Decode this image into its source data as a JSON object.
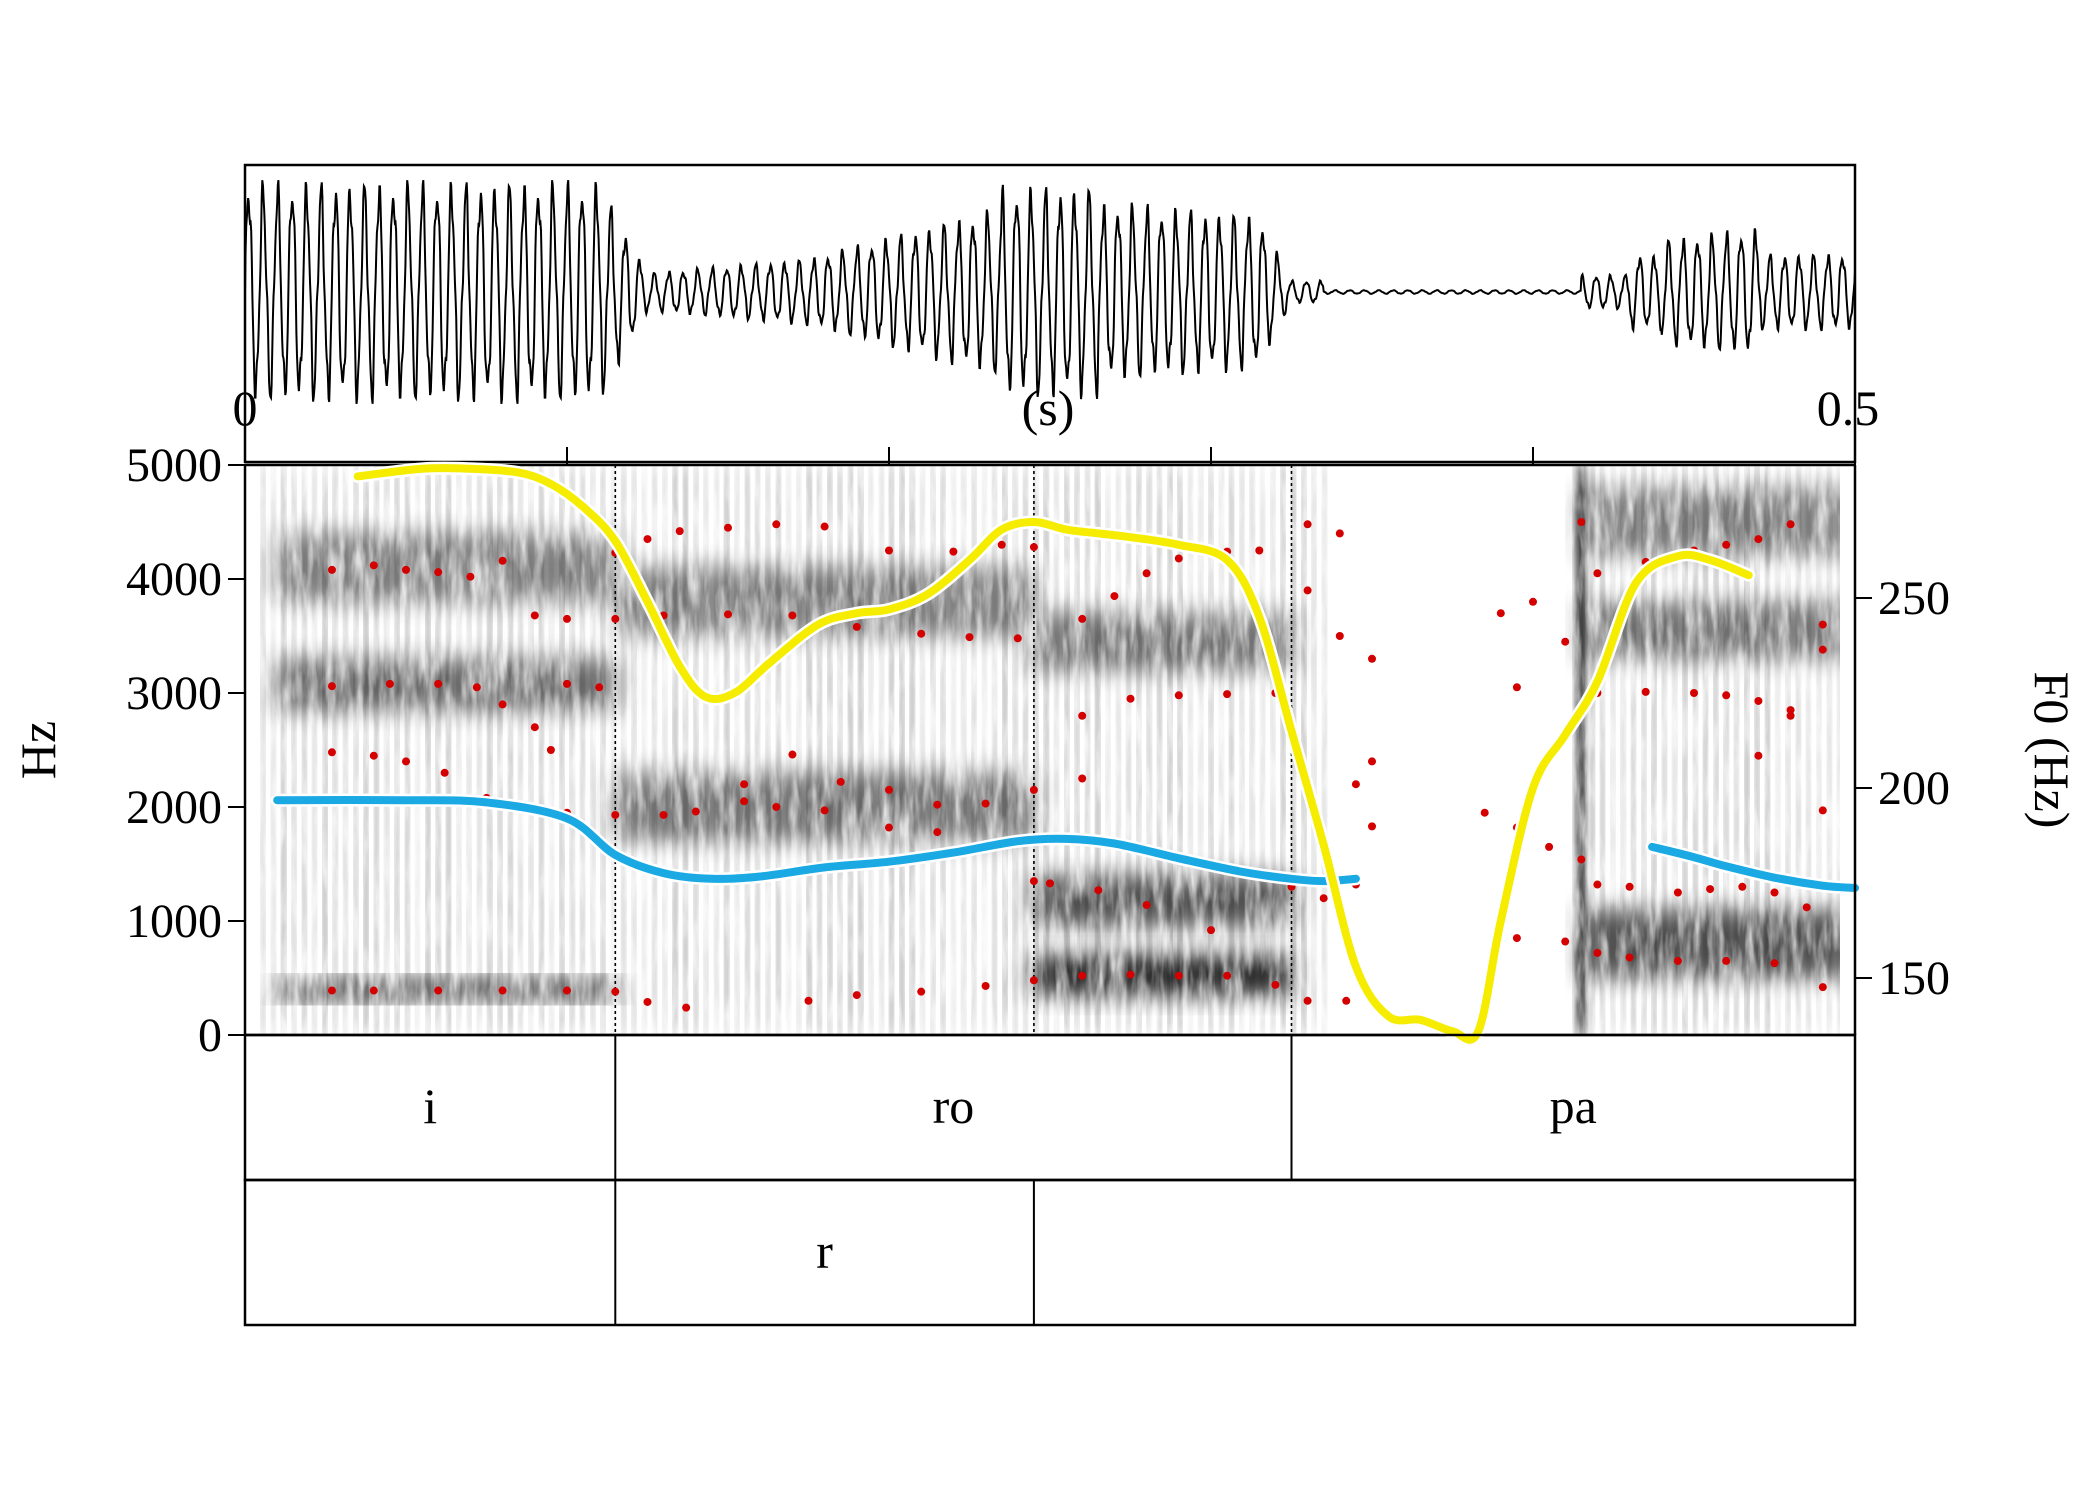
{
  "chart_data": {
    "type": "spectrogram",
    "x_axis": {
      "label": "(s)",
      "range": [
        0,
        0.5
      ],
      "tick_labels": [
        "0",
        "0.5"
      ]
    },
    "y_left": {
      "label": "Hz",
      "range": [
        0,
        5000
      ],
      "ticks": [
        "0",
        "1000",
        "2000",
        "3000",
        "4000",
        "5000"
      ]
    },
    "y_right": {
      "label": "F0 (Hz)",
      "range": [
        135,
        285
      ],
      "ticks": [
        "150",
        "200",
        "250"
      ]
    },
    "boundaries_s": [
      0.115,
      0.245,
      0.325
    ],
    "series": [
      {
        "name": "F0",
        "color": "#f5ec00",
        "axis": "right",
        "points": [
          [
            0.035,
            282
          ],
          [
            0.055,
            284
          ],
          [
            0.07,
            284
          ],
          [
            0.085,
            283
          ],
          [
            0.095,
            280
          ],
          [
            0.105,
            274
          ],
          [
            0.115,
            265
          ],
          [
            0.125,
            249
          ],
          [
            0.135,
            232
          ],
          [
            0.143,
            224
          ],
          [
            0.152,
            225
          ],
          [
            0.163,
            233
          ],
          [
            0.178,
            243
          ],
          [
            0.19,
            246
          ],
          [
            0.2,
            247
          ],
          [
            0.212,
            251
          ],
          [
            0.225,
            260
          ],
          [
            0.235,
            268
          ],
          [
            0.245,
            270
          ],
          [
            0.255,
            268
          ],
          [
            0.265,
            267
          ],
          [
            0.275,
            266
          ],
          [
            0.29,
            264
          ],
          [
            0.305,
            260
          ],
          [
            0.315,
            245
          ],
          [
            0.325,
            215
          ],
          [
            0.335,
            185
          ],
          [
            0.345,
            153
          ],
          [
            0.355,
            140
          ],
          [
            0.365,
            139
          ],
          [
            0.375,
            136
          ],
          [
            0.383,
            136
          ],
          [
            0.39,
            165
          ],
          [
            0.4,
            200
          ],
          [
            0.41,
            214
          ],
          [
            0.42,
            228
          ],
          [
            0.432,
            254
          ],
          [
            0.445,
            261
          ],
          [
            0.455,
            260
          ],
          [
            0.467,
            256
          ]
        ]
      },
      {
        "name": "F2",
        "color": "#1aa9e2",
        "axis": "left",
        "points": [
          [
            0.01,
            2060
          ],
          [
            0.05,
            2060
          ],
          [
            0.075,
            2040
          ],
          [
            0.1,
            1900
          ],
          [
            0.115,
            1580
          ],
          [
            0.13,
            1420
          ],
          [
            0.145,
            1370
          ],
          [
            0.16,
            1390
          ],
          [
            0.18,
            1470
          ],
          [
            0.2,
            1520
          ],
          [
            0.22,
            1600
          ],
          [
            0.24,
            1700
          ],
          [
            0.255,
            1720
          ],
          [
            0.27,
            1680
          ],
          [
            0.29,
            1550
          ],
          [
            0.31,
            1430
          ],
          [
            0.325,
            1370
          ],
          [
            0.335,
            1350
          ],
          [
            0.345,
            1370
          ]
        ]
      },
      {
        "name": "F2",
        "color": "#1aa9e2",
        "axis": "left",
        "points": [
          [
            0.437,
            1650
          ],
          [
            0.45,
            1560
          ],
          [
            0.46,
            1480
          ],
          [
            0.475,
            1380
          ],
          [
            0.49,
            1310
          ],
          [
            0.5,
            1290
          ]
        ]
      }
    ],
    "formant_points": [
      [
        0.027,
        390
      ],
      [
        0.04,
        390
      ],
      [
        0.06,
        390
      ],
      [
        0.08,
        390
      ],
      [
        0.1,
        390
      ],
      [
        0.115,
        380
      ],
      [
        0.125,
        290
      ],
      [
        0.137,
        240
      ],
      [
        0.175,
        300
      ],
      [
        0.19,
        350
      ],
      [
        0.21,
        380
      ],
      [
        0.23,
        430
      ],
      [
        0.245,
        480
      ],
      [
        0.26,
        520
      ],
      [
        0.275,
        530
      ],
      [
        0.29,
        520
      ],
      [
        0.305,
        520
      ],
      [
        0.32,
        440
      ],
      [
        0.33,
        300
      ],
      [
        0.342,
        300
      ],
      [
        0.027,
        2480
      ],
      [
        0.04,
        2450
      ],
      [
        0.05,
        2400
      ],
      [
        0.062,
        2300
      ],
      [
        0.075,
        2080
      ],
      [
        0.09,
        1980
      ],
      [
        0.1,
        1950
      ],
      [
        0.115,
        1930
      ],
      [
        0.13,
        1930
      ],
      [
        0.14,
        1960
      ],
      [
        0.155,
        2200
      ],
      [
        0.17,
        2460
      ],
      [
        0.185,
        2220
      ],
      [
        0.2,
        2150
      ],
      [
        0.215,
        2020
      ],
      [
        0.23,
        2030
      ],
      [
        0.245,
        2150
      ],
      [
        0.26,
        2250
      ],
      [
        0.155,
        2050
      ],
      [
        0.165,
        2000
      ],
      [
        0.18,
        1970
      ],
      [
        0.2,
        1820
      ],
      [
        0.215,
        1780
      ],
      [
        0.23,
        1640
      ],
      [
        0.245,
        1350
      ],
      [
        0.25,
        1330
      ],
      [
        0.265,
        1270
      ],
      [
        0.28,
        1140
      ],
      [
        0.3,
        920
      ],
      [
        0.027,
        3060
      ],
      [
        0.045,
        3080
      ],
      [
        0.06,
        3080
      ],
      [
        0.072,
        3050
      ],
      [
        0.08,
        2900
      ],
      [
        0.09,
        2700
      ],
      [
        0.095,
        2500
      ],
      [
        0.1,
        3080
      ],
      [
        0.11,
        3050
      ],
      [
        0.09,
        3680
      ],
      [
        0.1,
        3650
      ],
      [
        0.115,
        3650
      ],
      [
        0.13,
        3680
      ],
      [
        0.15,
        3690
      ],
      [
        0.17,
        3680
      ],
      [
        0.19,
        3580
      ],
      [
        0.21,
        3520
      ],
      [
        0.225,
        3490
      ],
      [
        0.24,
        3480
      ],
      [
        0.027,
        4080
      ],
      [
        0.04,
        4120
      ],
      [
        0.05,
        4080
      ],
      [
        0.06,
        4060
      ],
      [
        0.07,
        4020
      ],
      [
        0.08,
        4160
      ],
      [
        0.115,
        4230
      ],
      [
        0.125,
        4350
      ],
      [
        0.135,
        4420
      ],
      [
        0.15,
        4450
      ],
      [
        0.165,
        4480
      ],
      [
        0.18,
        4460
      ],
      [
        0.2,
        4250
      ],
      [
        0.22,
        4240
      ],
      [
        0.235,
        4300
      ],
      [
        0.245,
        4280
      ],
      [
        0.26,
        3650
      ],
      [
        0.27,
        3850
      ],
      [
        0.28,
        4050
      ],
      [
        0.29,
        4180
      ],
      [
        0.305,
        4240
      ],
      [
        0.315,
        4250
      ],
      [
        0.26,
        2800
      ],
      [
        0.275,
        2950
      ],
      [
        0.29,
        2980
      ],
      [
        0.305,
        2990
      ],
      [
        0.32,
        3000
      ],
      [
        0.33,
        4480
      ],
      [
        0.34,
        4400
      ],
      [
        0.33,
        3900
      ],
      [
        0.34,
        3500
      ],
      [
        0.35,
        3300
      ],
      [
        0.35,
        2400
      ],
      [
        0.345,
        2200
      ],
      [
        0.35,
        1830
      ],
      [
        0.325,
        1300
      ],
      [
        0.335,
        1200
      ],
      [
        0.345,
        1320
      ],
      [
        0.39,
        3700
      ],
      [
        0.4,
        3800
      ],
      [
        0.395,
        3050
      ],
      [
        0.41,
        3450
      ],
      [
        0.415,
        4500
      ],
      [
        0.385,
        1950
      ],
      [
        0.395,
        1820
      ],
      [
        0.405,
        1650
      ],
      [
        0.415,
        1540
      ],
      [
        0.42,
        1320
      ],
      [
        0.43,
        1300
      ],
      [
        0.395,
        850
      ],
      [
        0.41,
        820
      ],
      [
        0.42,
        720
      ],
      [
        0.43,
        680
      ],
      [
        0.445,
        650
      ],
      [
        0.46,
        650
      ],
      [
        0.475,
        630
      ],
      [
        0.49,
        420
      ],
      [
        0.42,
        4050
      ],
      [
        0.435,
        4150
      ],
      [
        0.45,
        4250
      ],
      [
        0.46,
        4300
      ],
      [
        0.47,
        4350
      ],
      [
        0.48,
        4480
      ],
      [
        0.42,
        3000
      ],
      [
        0.435,
        3010
      ],
      [
        0.45,
        3000
      ],
      [
        0.46,
        2980
      ],
      [
        0.47,
        2930
      ],
      [
        0.48,
        2850
      ],
      [
        0.445,
        1250
      ],
      [
        0.455,
        1280
      ],
      [
        0.465,
        1300
      ],
      [
        0.475,
        1250
      ],
      [
        0.485,
        1120
      ],
      [
        0.47,
        2450
      ],
      [
        0.48,
        2800
      ],
      [
        0.49,
        3380
      ],
      [
        0.49,
        3600
      ],
      [
        0.49,
        1970
      ]
    ],
    "formant_color": "#d40000",
    "tiers": [
      {
        "intervals": [
          {
            "start": 0,
            "end": 0.115,
            "label": "i"
          },
          {
            "start": 0.115,
            "end": 0.325,
            "label": "ro"
          },
          {
            "start": 0.325,
            "end": 0.5,
            "label": "pa"
          }
        ]
      },
      {
        "intervals": [
          {
            "start": 0,
            "end": 0.115,
            "label": ""
          },
          {
            "start": 0.115,
            "end": 0.245,
            "label": "r"
          },
          {
            "start": 0.245,
            "end": 0.5,
            "label": ""
          }
        ]
      }
    ]
  }
}
